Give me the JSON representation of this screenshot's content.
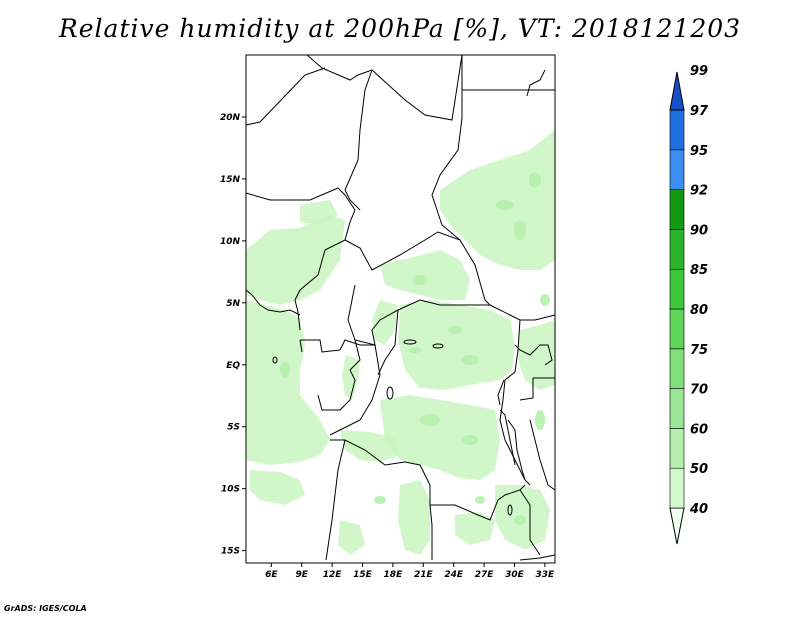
{
  "title": "Relative humidity at 200hPa [%], VT: 2018121203",
  "credit": "GrADS: IGES/COLA",
  "map": {
    "lat_labels": [
      {
        "value": 20,
        "label": "20N"
      },
      {
        "value": 15,
        "label": "15N"
      },
      {
        "value": 10,
        "label": "10N"
      },
      {
        "value": 5,
        "label": "5N"
      },
      {
        "value": 0,
        "label": "EQ"
      },
      {
        "value": -5,
        "label": "5S"
      },
      {
        "value": -10,
        "label": "10S"
      },
      {
        "value": -15,
        "label": "15S"
      }
    ],
    "lon_labels": [
      {
        "value": 6,
        "label": "6E"
      },
      {
        "value": 9,
        "label": "9E"
      },
      {
        "value": 12,
        "label": "12E"
      },
      {
        "value": 15,
        "label": "15E"
      },
      {
        "value": 18,
        "label": "18E"
      },
      {
        "value": 21,
        "label": "21E"
      },
      {
        "value": 24,
        "label": "24E"
      },
      {
        "value": 27,
        "label": "27E"
      },
      {
        "value": 30,
        "label": "30E"
      },
      {
        "value": 33,
        "label": "33E"
      }
    ],
    "lat_range": [
      -16,
      25
    ],
    "lon_range": [
      3.5,
      34
    ],
    "field_color": "#c8f5c0"
  },
  "colorbar": {
    "levels": [
      "40",
      "50",
      "60",
      "70",
      "75",
      "80",
      "85",
      "90",
      "92",
      "95",
      "97",
      "99"
    ],
    "colors": [
      "#f0fff0",
      "#d2f9cc",
      "#b4f0ac",
      "#9be696",
      "#7fe07a",
      "#5fd55a",
      "#3cc83a",
      "#2bb52a",
      "#129a12",
      "#3a8ff0",
      "#1f6fe0",
      "#1450c8"
    ]
  }
}
